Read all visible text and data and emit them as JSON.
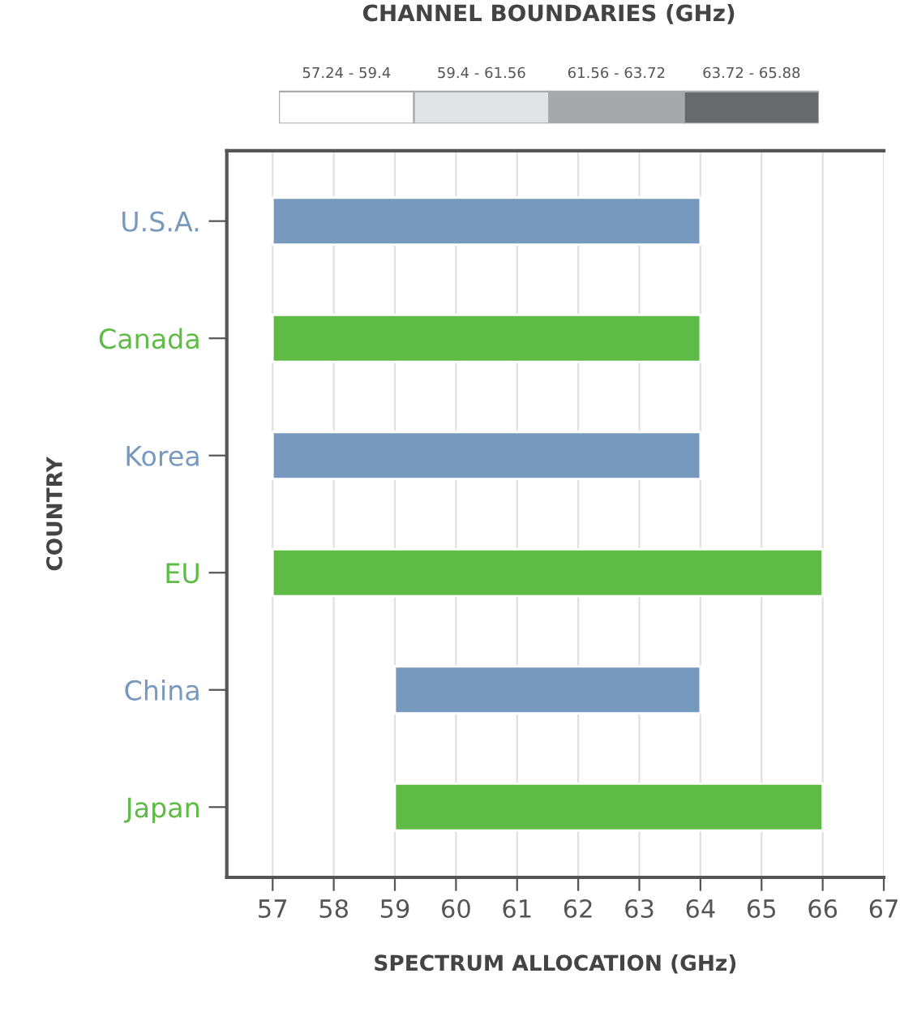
{
  "chart_data": [
    {
      "type": "other",
      "title": "CHANNEL BOUNDARIES (GHz)",
      "categories": [
        "57.24 - 59.4",
        "59.4 - 61.56",
        "61.56 - 63.72",
        "63.72 - 65.88"
      ],
      "colors": [
        "#ffffff",
        "#e2e3e4",
        "#a7a8aa",
        "#68696b"
      ]
    },
    {
      "type": "bar",
      "orientation": "horizontal",
      "categories": [
        "U.S.A.",
        "Canada",
        "Korea",
        "EU",
        "China",
        "Japan"
      ],
      "base": [
        57,
        57,
        57,
        57,
        59,
        59
      ],
      "values": [
        7,
        7,
        7,
        9,
        5,
        7
      ],
      "colors": [
        "#7799bd",
        "#5dbb46",
        "#7799bd",
        "#5dbb46",
        "#7799bd",
        "#5dbb46"
      ],
      "xlim": [
        56.25,
        67
      ],
      "xticks": [
        57,
        58,
        59,
        60,
        61,
        62,
        63,
        64,
        65,
        66,
        67
      ],
      "xlabel": "SPECTRUM ALLOCATION (GHz)",
      "ylabel": "COUNTRY",
      "grid": "x"
    }
  ]
}
